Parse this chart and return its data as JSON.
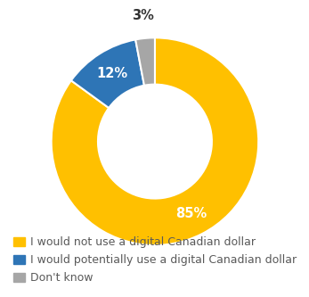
{
  "values": [
    85,
    12,
    3
  ],
  "labels": [
    "85%",
    "12%",
    "3%"
  ],
  "colors": [
    "#FFC000",
    "#2E75B6",
    "#A6A6A6"
  ],
  "legend_labels": [
    "I would not use a digital Canadian dollar",
    "I would potentially use a digital Canadian dollar",
    "Don't know"
  ],
  "legend_colors": [
    "#FFC000",
    "#2E75B6",
    "#A6A6A6"
  ],
  "background_color": "#FFFFFF",
  "wedge_edge_color": "#FFFFFF",
  "donut_hole": 0.55,
  "label_fontsize": 10.5,
  "label_color_inside": "#FFFFFF",
  "label_color_outside": "#333333",
  "legend_fontsize": 9.0,
  "legend_text_color": "#595959",
  "start_angle": 90
}
